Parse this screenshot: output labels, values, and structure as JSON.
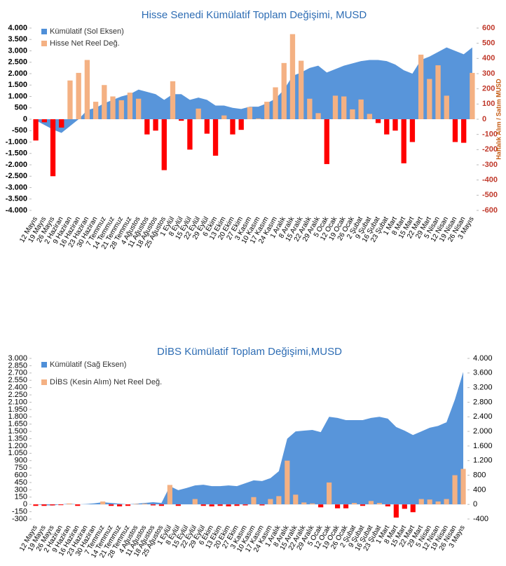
{
  "chart_data": [
    {
      "type": "combo",
      "title": "Hisse Senedi Kümülatif Toplam Değişimi, MUSD",
      "y2_label": "Haftalık Alım / Satım MUSD",
      "categories": [
        "12 Mayıs",
        "19 Mayıs",
        "26 Mayıs",
        "2 Haziran",
        "9 Haziran",
        "16 Haziran",
        "23 Haziran",
        "30 Haziran",
        "7 Temmuz",
        "14 Temmuz",
        "21 Temmuz",
        "28 Temmuz",
        "4 Ağustos",
        "11 Ağustos",
        "18 Ağustos",
        "25 Ağustos",
        "1 Eylül",
        "8 Eylül",
        "15 Eylül",
        "22 Eylül",
        "29 Eylül",
        "6 Ekim",
        "13 Ekim",
        "20 Ekim",
        "27 Ekim",
        "3 Kasım",
        "10 Kasım",
        "17 Kasım",
        "24 Kasım",
        "1 Aralık",
        "8 Aralık",
        "15 Aralık",
        "22 Aralık",
        "29 Aralık",
        "5 Ocak",
        "12 Ocak",
        "19 Ocak",
        "26 Ocak",
        "2 Şubat",
        "9 Şubat",
        "16 Şubat",
        "23 Şubat",
        "1 Mart",
        "8 Mart",
        "15 Mart",
        "22 Mart",
        "29 Mart",
        "5 Nisan",
        "12 Nisan",
        "19 Nisan",
        "26 Nisan",
        "3 Mayıs"
      ],
      "series": [
        {
          "name": "Kümülatif (Sol Eksen)",
          "type": "area",
          "axis": "y",
          "color": "#4f8fd8",
          "values": [
            -50,
            -250,
            -450,
            -600,
            -300,
            0,
            400,
            500,
            700,
            850,
            1000,
            1100,
            1300,
            1200,
            1100,
            850,
            1100,
            1100,
            850,
            950,
            850,
            600,
            600,
            500,
            450,
            550,
            550,
            700,
            900,
            1300,
            1900,
            2050,
            2250,
            2350,
            2050,
            2200,
            2350,
            2450,
            2550,
            2600,
            2600,
            2550,
            2400,
            2150,
            2000,
            2600,
            2750,
            2950,
            3150,
            3000,
            2850,
            3150
          ]
        },
        {
          "name": "Hisse Net Reel Değ.",
          "type": "bar",
          "axis": "y2",
          "color": "#f4b183",
          "negative_color": "#ff0000",
          "values": [
            -140,
            -20,
            -375,
            -55,
            255,
            305,
            390,
            115,
            225,
            150,
            125,
            175,
            135,
            -100,
            -75,
            -335,
            250,
            -10,
            -200,
            70,
            -95,
            -240,
            25,
            -100,
            -70,
            80,
            5,
            115,
            210,
            370,
            560,
            385,
            135,
            40,
            -295,
            155,
            150,
            65,
            130,
            35,
            -25,
            -100,
            -75,
            -290,
            -150,
            425,
            265,
            355,
            155,
            -150,
            -155,
            305
          ]
        }
      ],
      "ylim": [
        -4000,
        4000
      ],
      "yticks": [
        {
          "value": -4000,
          "label": "-4.000"
        },
        {
          "value": -3500,
          "label": "-3.500"
        },
        {
          "value": -3000,
          "label": "-3.000"
        },
        {
          "value": -2500,
          "label": "-2.500"
        },
        {
          "value": -2000,
          "label": "-2.000"
        },
        {
          "value": -1500,
          "label": "-1.500"
        },
        {
          "value": -1000,
          "label": "-1.000"
        },
        -500,
        0,
        500,
        {
          "value": 1000,
          "label": "1.000"
        },
        {
          "value": 1500,
          "label": "1.500"
        },
        {
          "value": 2000,
          "label": "2.000"
        },
        {
          "value": 2500,
          "label": "2.500"
        },
        {
          "value": 3000,
          "label": "3.000"
        },
        {
          "value": 3500,
          "label": "3.500"
        },
        {
          "value": 4000,
          "label": "4.000"
        }
      ],
      "y2lim": [
        -600,
        600
      ],
      "y2ticks": [
        -600,
        -500,
        -400,
        -300,
        -200,
        -100,
        0,
        100,
        200,
        300,
        400,
        500,
        600
      ]
    },
    {
      "type": "combo",
      "title": "DİBS Kümülatif Toplam Değişimi,MUSD",
      "categories": [
        "12 Mayıs",
        "19 Mayıs",
        "26 Mayıs",
        "2 Haziran",
        "9 Haziran",
        "16 Haziran",
        "23 Haziran",
        "30 Haziran",
        "7 Temmuz",
        "14 Temmuz",
        "21 Temmuz",
        "28 Temmuz",
        "4 Ağustos",
        "11 Ağustos",
        "18 Ağustos",
        "25 Ağustos",
        "1 Eylül",
        "8 Eylül",
        "15 Eylül",
        "22 Eylül",
        "29 Eylül",
        "6 Ekim",
        "13 Ekim",
        "20 Ekim",
        "27 Ekim",
        "3 Kasım",
        "10 Kasım",
        "17 Kasım",
        "24 Kasım",
        "1 Aralık",
        "8 Aralık",
        "15 Aralık",
        "22 Aralık",
        "29 Aralık",
        "5 Ocak",
        "12 Ocak",
        "19 Ocak",
        "26 Ocak",
        "2 Şubat",
        "9 Şubat",
        "16 Şubat",
        "23 Şubat",
        "1 Mart",
        "8 Mart",
        "15 Mart",
        "22 Mart",
        "29 Mart",
        "5 Nisan",
        "12 Nisan",
        "19 Nisan",
        "26 Nisan",
        "3 Mayıs"
      ],
      "series": [
        {
          "name": "Kümülatif (Sağ Eksen)",
          "type": "area",
          "axis": "y2",
          "color": "#4f8fd8",
          "values": [
            0,
            -20,
            -30,
            0,
            20,
            0,
            10,
            30,
            60,
            40,
            20,
            0,
            20,
            40,
            60,
            40,
            500,
            390,
            450,
            520,
            540,
            500,
            500,
            520,
            500,
            580,
            660,
            640,
            720,
            910,
            1800,
            2000,
            2020,
            2040,
            1980,
            2400,
            2370,
            2310,
            2310,
            2310,
            2370,
            2400,
            2350,
            2120,
            2020,
            1900,
            2000,
            2100,
            2150,
            2250,
            2870,
            3630
          ]
        },
        {
          "name": "DİBS (Kesin Alım) Net Reel Değ.",
          "type": "bar",
          "axis": "y",
          "color": "#f4b183",
          "negative_color": "#ff0000",
          "values": [
            -30,
            -30,
            -20,
            -15,
            20,
            -30,
            0,
            0,
            60,
            -30,
            -40,
            -30,
            10,
            15,
            -20,
            -30,
            400,
            -30,
            0,
            110,
            -30,
            -40,
            -30,
            -40,
            -30,
            -20,
            150,
            -20,
            110,
            170,
            900,
            200,
            40,
            20,
            -60,
            450,
            -80,
            -80,
            30,
            -30,
            70,
            30,
            -40,
            -270,
            -90,
            -160,
            110,
            100,
            60,
            110,
            600,
            730
          ]
        }
      ],
      "ylim": [
        -300,
        3000
      ],
      "yticks": [
        -300,
        -150,
        0,
        150,
        300,
        450,
        600,
        750,
        900,
        {
          "value": 1050,
          "label": "1.050"
        },
        {
          "value": 1200,
          "label": "1.200"
        },
        {
          "value": 1350,
          "label": "1.350"
        },
        {
          "value": 1500,
          "label": "1.500"
        },
        {
          "value": 1650,
          "label": "1.650"
        },
        {
          "value": 1800,
          "label": "1.800"
        },
        {
          "value": 1950,
          "label": "1.950"
        },
        {
          "value": 2100,
          "label": "2.100"
        },
        {
          "value": 2250,
          "label": "2.250"
        },
        {
          "value": 2400,
          "label": "2.400"
        },
        {
          "value": 2550,
          "label": "2.550"
        },
        {
          "value": 2700,
          "label": "2.700"
        },
        {
          "value": 2850,
          "label": "2.850"
        },
        {
          "value": 3000,
          "label": "3.000"
        }
      ],
      "y2lim": [
        -400,
        4000
      ],
      "y2ticks": [
        -400,
        0,
        400,
        800,
        {
          "value": 1200,
          "label": "1.200"
        },
        {
          "value": 1600,
          "label": "1.600"
        },
        {
          "value": 2000,
          "label": "2.000"
        },
        {
          "value": 2400,
          "label": "2.400"
        },
        {
          "value": 2800,
          "label": "2.800"
        },
        {
          "value": 3200,
          "label": "3.200"
        },
        {
          "value": 3600,
          "label": "3.600"
        },
        {
          "value": 4000,
          "label": "4.000"
        }
      ]
    }
  ]
}
